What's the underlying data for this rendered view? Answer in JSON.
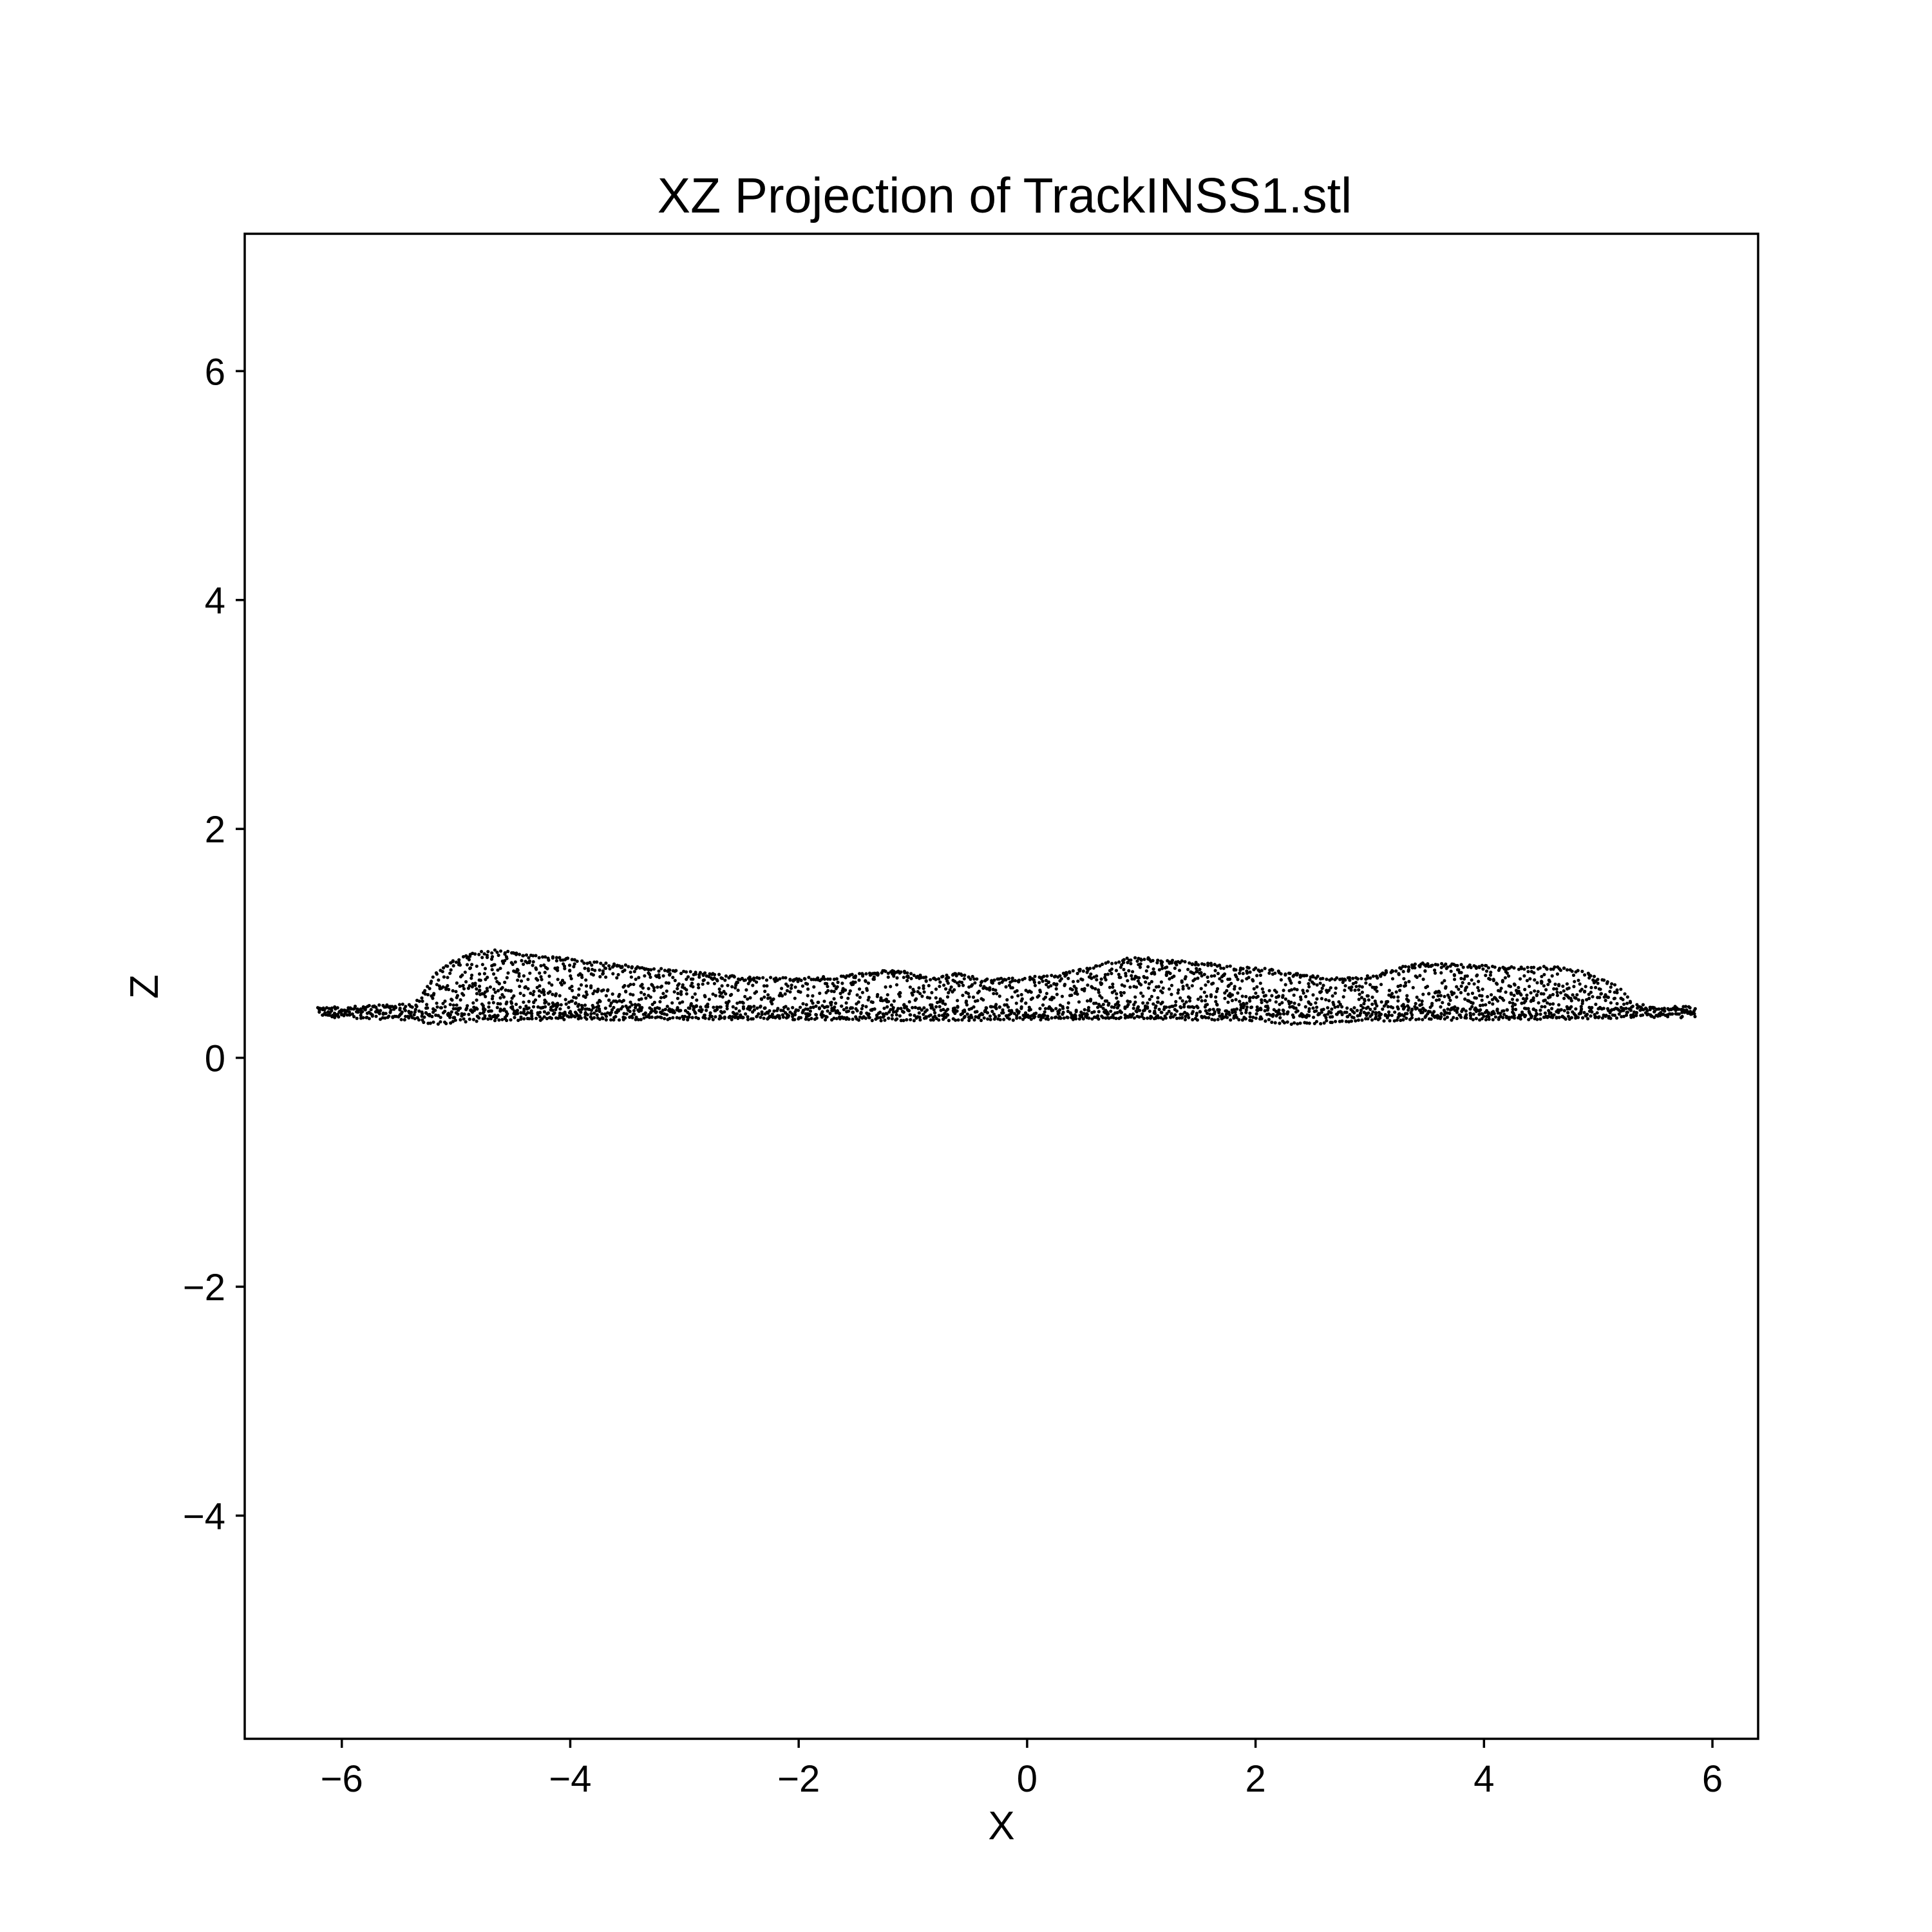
{
  "chart_data": {
    "type": "scatter",
    "title": "XZ Projection of TrackINSS1.stl",
    "xlabel": "X",
    "ylabel": "Z",
    "xlim": [
      -6.85,
      6.4
    ],
    "ylim": [
      -5.95,
      7.2
    ],
    "xticks": [
      -6,
      -4,
      -2,
      0,
      2,
      4,
      6
    ],
    "yticks": [
      -4,
      -2,
      0,
      2,
      4,
      6
    ],
    "xtick_labels": [
      "−6",
      "−4",
      "−2",
      "0",
      "2",
      "4",
      "6"
    ],
    "ytick_labels": [
      "−4",
      "−2",
      "0",
      "2",
      "4",
      "6"
    ],
    "grid": false,
    "legend": "none",
    "marker_color": "#000000",
    "x_range": [
      -6.2,
      5.85
    ],
    "z_floor": 0.4,
    "upper_profile": {
      "x": [
        -6.2,
        -5.9,
        -5.6,
        -5.35,
        -5.2,
        -5.1,
        -4.85,
        -4.6,
        -4.3,
        -4.0,
        -3.6,
        -3.0,
        -2.5,
        -2.0,
        -1.6,
        -1.3,
        -1.15,
        -1.0,
        -0.85,
        -0.6,
        -0.4,
        -0.1,
        0.2,
        0.5,
        0.7,
        0.95,
        1.2,
        1.5,
        1.8,
        2.1,
        2.4,
        2.7,
        3.0,
        3.2,
        3.45,
        3.7,
        4.0,
        4.3,
        4.6,
        4.85,
        5.05,
        5.2,
        5.3,
        5.5,
        5.7,
        5.85
      ],
      "z": [
        0.43,
        0.45,
        0.47,
        0.48,
        0.7,
        0.82,
        0.92,
        0.95,
        0.9,
        0.87,
        0.82,
        0.76,
        0.71,
        0.7,
        0.72,
        0.76,
        0.77,
        0.74,
        0.7,
        0.74,
        0.69,
        0.7,
        0.72,
        0.78,
        0.84,
        0.89,
        0.86,
        0.84,
        0.8,
        0.78,
        0.73,
        0.7,
        0.72,
        0.78,
        0.83,
        0.82,
        0.81,
        0.8,
        0.8,
        0.76,
        0.7,
        0.6,
        0.48,
        0.45,
        0.44,
        0.43
      ]
    },
    "lower_profile": {
      "x": [
        -6.2,
        -5.8,
        -5.4,
        -5.2,
        -4.8,
        -4.0,
        -3.0,
        -2.0,
        -1.0,
        0.0,
        1.0,
        2.0,
        2.4,
        3.0,
        4.0,
        5.0,
        5.5,
        5.85
      ],
      "z": [
        0.37,
        0.34,
        0.33,
        0.29,
        0.32,
        0.33,
        0.33,
        0.33,
        0.32,
        0.33,
        0.34,
        0.32,
        0.28,
        0.32,
        0.33,
        0.34,
        0.36,
        0.38
      ]
    }
  }
}
